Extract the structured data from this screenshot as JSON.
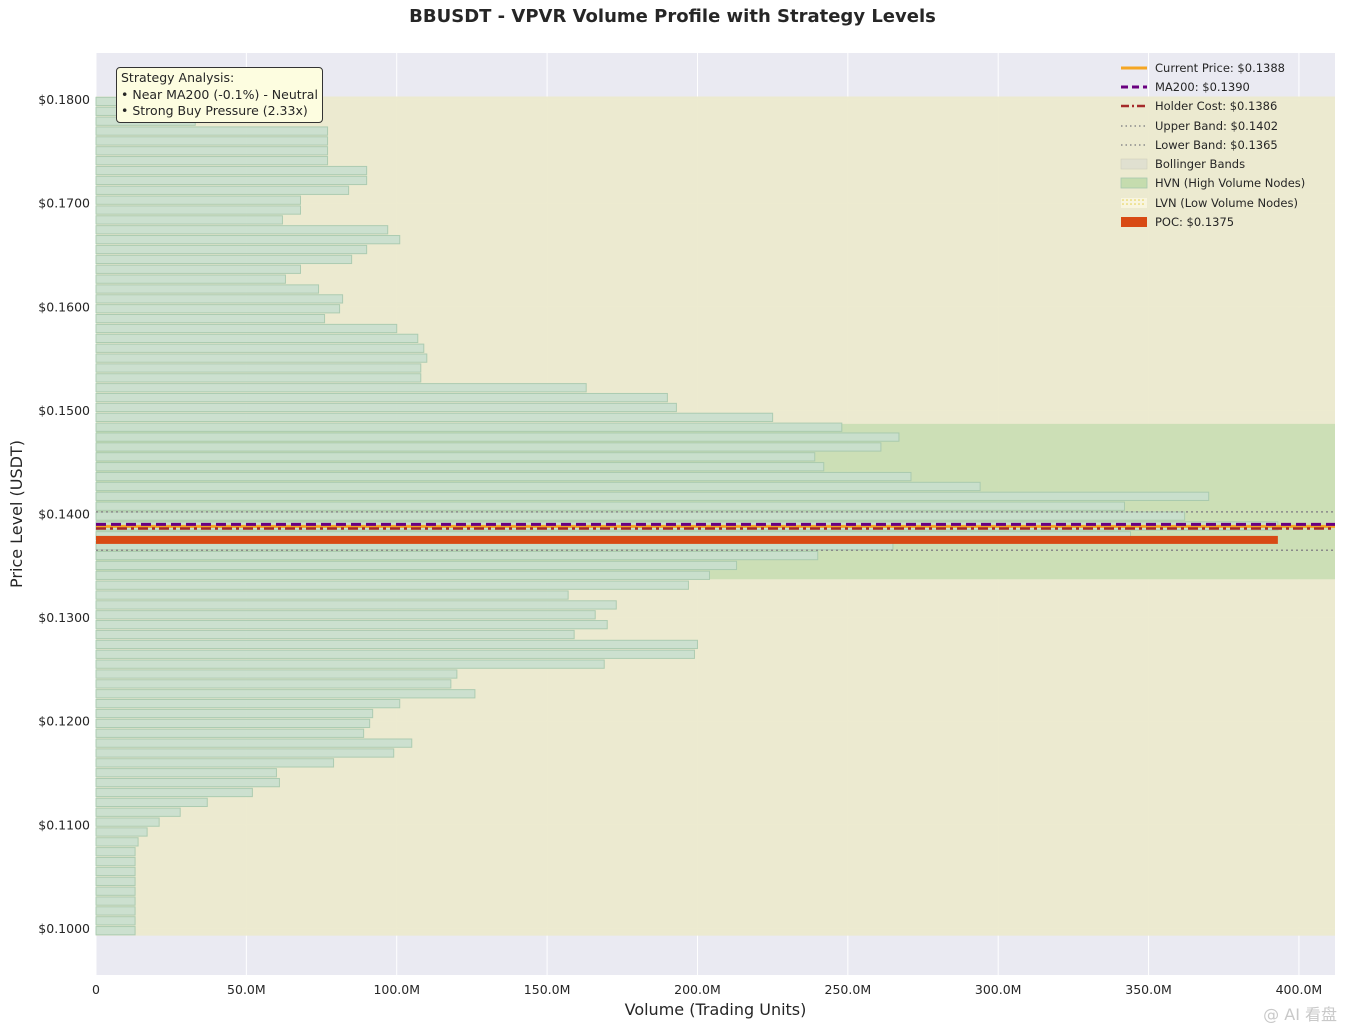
{
  "chart_data": {
    "type": "bar",
    "orientation": "horizontal",
    "title": "BBUSDT - VPVR Volume Profile with Strategy Levels",
    "xlabel": "Volume (Trading Units)",
    "ylabel": "Price Level (USDT)",
    "xlim": [
      0,
      412
    ],
    "ylim": [
      0.0955,
      0.1845
    ],
    "x_ticks": [
      {
        "value": 0,
        "label": "0"
      },
      {
        "value": 50,
        "label": "50.0M"
      },
      {
        "value": 100,
        "label": "100.0M"
      },
      {
        "value": 150,
        "label": "150.0M"
      },
      {
        "value": 200,
        "label": "200.0M"
      },
      {
        "value": 250,
        "label": "250.0M"
      },
      {
        "value": 300,
        "label": "300.0M"
      },
      {
        "value": 350,
        "label": "350.0M"
      },
      {
        "value": 400,
        "label": "400.0M"
      }
    ],
    "y_ticks": [
      {
        "value": 0.1,
        "label": "$0.1000"
      },
      {
        "value": 0.11,
        "label": "$0.1100"
      },
      {
        "value": 0.12,
        "label": "$0.1200"
      },
      {
        "value": 0.13,
        "label": "$0.1300"
      },
      {
        "value": 0.14,
        "label": "$0.1400"
      },
      {
        "value": 0.15,
        "label": "$0.1500"
      },
      {
        "value": 0.16,
        "label": "$0.1600"
      },
      {
        "value": 0.17,
        "label": "$0.1700"
      },
      {
        "value": 0.18,
        "label": "$0.1800"
      }
    ],
    "grid": true,
    "price_range": [
      0.0993,
      0.1803
    ],
    "bin_count": 85,
    "volumes_millions_bottom_to_top": [
      13,
      13,
      13,
      13,
      13,
      13,
      13,
      13,
      13,
      14,
      17,
      21,
      28,
      37,
      52,
      61,
      60,
      79,
      99,
      105,
      89,
      91,
      92,
      101,
      126,
      118,
      120,
      169,
      199,
      200,
      159,
      170,
      166,
      173,
      157,
      197,
      204,
      213,
      240,
      265,
      344,
      393,
      362,
      342,
      370,
      294,
      271,
      242,
      239,
      261,
      267,
      248,
      225,
      193,
      190,
      163,
      108,
      108,
      110,
      109,
      107,
      100,
      76,
      81,
      82,
      74,
      63,
      68,
      85,
      90,
      101,
      97,
      62,
      68,
      68,
      84,
      90,
      90,
      77,
      77,
      77,
      77,
      33,
      13,
      13
    ],
    "hvn_zone": [
      0.1337,
      0.1487
    ],
    "bollinger_band_zone": [
      0.0993,
      0.1803
    ],
    "levels": {
      "current_price": 0.1388,
      "ma200": 0.139,
      "holder_cost": 0.1386,
      "upper_band": 0.1402,
      "lower_band": 0.1365,
      "poc": 0.1375,
      "poc_volume": 393
    },
    "legend_placement": "top-right",
    "legend": [
      {
        "label": "Current Price: $0.1388",
        "style": "solid",
        "color": "#f5a623"
      },
      {
        "label": "MA200: $0.1390",
        "style": "dashed",
        "color": "#6a0080"
      },
      {
        "label": "Holder Cost: $0.1386",
        "style": "dashdot",
        "color": "#a52a2a"
      },
      {
        "label": "Upper Band: $0.1402",
        "style": "dotted",
        "color": "#8a8a8a"
      },
      {
        "label": "Lower Band: $0.1365",
        "style": "dotted",
        "color": "#8a8a8a"
      },
      {
        "label": "Bollinger Bands",
        "style": "patch-hatch",
        "color": "#e0e0d0"
      },
      {
        "label": "HVN (High Volume Nodes)",
        "style": "patch",
        "color": "#c5dcae"
      },
      {
        "label": "LVN (Low Volume Nodes)",
        "style": "patch-dots",
        "color": "#f5eb9a"
      },
      {
        "label": "POC: $0.1375",
        "style": "patch",
        "color": "#d84a14"
      }
    ],
    "annotation": {
      "heading": "Strategy Analysis:",
      "lines": [
        "• Near MA200 (-0.1%) - Neutral",
        "• Strong Buy Pressure (2.33x)"
      ]
    }
  },
  "colors": {
    "plot_bg": "#eaeaf2",
    "band_fill": "#eceacd",
    "hvn_fill": "#c9deb2",
    "bar_fill": "#c9e0cf",
    "bar_edge": "#a6c8ae",
    "poc": "#d84a14",
    "current": "#f5a623",
    "ma200": "#6a0080",
    "holder": "#a52a2a",
    "band_line": "#8a8a8a"
  },
  "watermark": "@ AI 看盘"
}
